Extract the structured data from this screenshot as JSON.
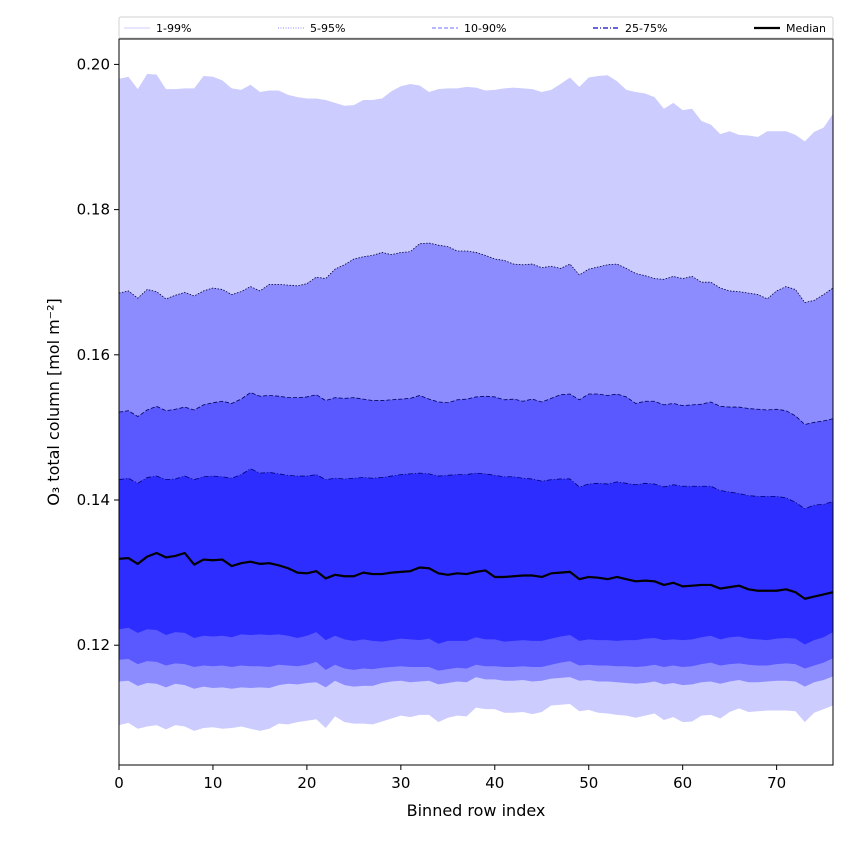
{
  "chart_data": {
    "type": "area",
    "xlabel": "Binned row index",
    "ylabel": "O₃ total column [mol m⁻²]",
    "xlim": [
      0,
      76
    ],
    "ylim": [
      0.1035,
      0.2035
    ],
    "xticks": [
      0,
      10,
      20,
      30,
      40,
      50,
      60,
      70
    ],
    "yticks": [
      0.12,
      0.14,
      0.16,
      0.18,
      0.2
    ],
    "x": [
      0,
      1,
      2,
      3,
      4,
      5,
      6,
      7,
      8,
      9,
      10,
      11,
      12,
      13,
      14,
      15,
      16,
      17,
      18,
      19,
      20,
      21,
      22,
      23,
      24,
      25,
      26,
      27,
      28,
      29,
      30,
      31,
      32,
      33,
      34,
      35,
      36,
      37,
      38,
      39,
      40,
      41,
      42,
      43,
      44,
      45,
      46,
      47,
      48,
      49,
      50,
      51,
      52,
      53,
      54,
      55,
      56,
      57,
      58,
      59,
      60,
      61,
      62,
      63,
      64,
      65,
      66,
      67,
      68,
      69,
      70,
      71,
      72,
      73,
      74,
      75,
      76
    ],
    "grid": false,
    "legend_position": "top",
    "legend": [
      {
        "label": "1-99%",
        "color": "#ccccff",
        "style": "solid-thin"
      },
      {
        "label": "5-95%",
        "color": "#8c8cff",
        "style": "dotted"
      },
      {
        "label": "10-90%",
        "color": "#8c8cff",
        "style": "dashed"
      },
      {
        "label": "25-75%",
        "color": "#3333cc",
        "style": "dashdot"
      },
      {
        "label": "Median",
        "color": "#000000",
        "style": "solid"
      }
    ],
    "bands": [
      {
        "name": "1-99%",
        "color": "#ccccff",
        "upper": [
          0.198,
          0.1983,
          0.1966,
          0.1987,
          0.1986,
          0.1966,
          0.1966,
          0.1967,
          0.1967,
          0.1984,
          0.1983,
          0.1978,
          0.1967,
          0.1965,
          0.1972,
          0.1962,
          0.1964,
          0.1964,
          0.1958,
          0.1955,
          0.1953,
          0.1953,
          0.1951,
          0.1947,
          0.1943,
          0.1944,
          0.1951,
          0.1951,
          0.1953,
          0.1963,
          0.197,
          0.1973,
          0.1971,
          0.1962,
          0.1966,
          0.1967,
          0.1967,
          0.1969,
          0.1968,
          0.1964,
          0.1965,
          0.1967,
          0.1968,
          0.1967,
          0.1966,
          0.1962,
          0.1965,
          0.1973,
          0.1982,
          0.1969,
          0.1982,
          0.1984,
          0.1985,
          0.1977,
          0.1965,
          0.1962,
          0.196,
          0.1955,
          0.1939,
          0.1947,
          0.1937,
          0.1939,
          0.1922,
          0.1917,
          0.1904,
          0.1908,
          0.1903,
          0.1902,
          0.19,
          0.1908,
          0.1908,
          0.1908,
          0.1903,
          0.1894,
          0.1907,
          0.1913,
          0.1932
        ],
        "lower": [
          0.109,
          0.1093,
          0.1085,
          0.1088,
          0.109,
          0.1084,
          0.109,
          0.1088,
          0.1082,
          0.1086,
          0.1087,
          0.1085,
          0.1086,
          0.1088,
          0.1085,
          0.1082,
          0.1085,
          0.1092,
          0.1091,
          0.1094,
          0.1096,
          0.1098,
          0.1086,
          0.1102,
          0.1094,
          0.1092,
          0.1092,
          0.1091,
          0.1095,
          0.1099,
          0.1103,
          0.1101,
          0.1104,
          0.1104,
          0.1094,
          0.11,
          0.1103,
          0.1102,
          0.1114,
          0.1112,
          0.1112,
          0.1107,
          0.1107,
          0.1108,
          0.1105,
          0.1108,
          0.1117,
          0.1118,
          0.1119,
          0.1109,
          0.1111,
          0.1107,
          0.1106,
          0.1104,
          0.1103,
          0.11,
          0.1103,
          0.1106,
          0.1097,
          0.1101,
          0.1094,
          0.1095,
          0.1103,
          0.1104,
          0.1099,
          0.1108,
          0.1113,
          0.1108,
          0.1109,
          0.111,
          0.111,
          0.111,
          0.1109,
          0.1094,
          0.1107,
          0.1112,
          0.1117
        ]
      },
      {
        "name": "5-95%",
        "color": "#8c8cff",
        "upper": [
          0.1685,
          0.1688,
          0.1678,
          0.169,
          0.1687,
          0.1677,
          0.1682,
          0.1686,
          0.1681,
          0.1688,
          0.1692,
          0.169,
          0.1683,
          0.1687,
          0.1694,
          0.1688,
          0.1697,
          0.1697,
          0.1696,
          0.1695,
          0.1698,
          0.1707,
          0.1705,
          0.1718,
          0.1724,
          0.1732,
          0.1735,
          0.1737,
          0.1741,
          0.1738,
          0.1741,
          0.1742,
          0.1753,
          0.1754,
          0.1751,
          0.1749,
          0.1743,
          0.1743,
          0.1741,
          0.1737,
          0.1732,
          0.173,
          0.1725,
          0.1724,
          0.1725,
          0.172,
          0.1722,
          0.1719,
          0.1725,
          0.171,
          0.1718,
          0.1721,
          0.1724,
          0.1725,
          0.1719,
          0.1712,
          0.1709,
          0.1705,
          0.1704,
          0.1708,
          0.1705,
          0.1708,
          0.17,
          0.17,
          0.1692,
          0.1688,
          0.1687,
          0.1685,
          0.1683,
          0.1677,
          0.1688,
          0.1694,
          0.169,
          0.1672,
          0.1675,
          0.1683,
          0.1692
        ],
        "lower": [
          0.115,
          0.1151,
          0.1144,
          0.1148,
          0.1147,
          0.1142,
          0.1147,
          0.1145,
          0.114,
          0.1143,
          0.1141,
          0.1142,
          0.114,
          0.1142,
          0.1141,
          0.1142,
          0.1141,
          0.1145,
          0.1147,
          0.1146,
          0.1148,
          0.1149,
          0.1142,
          0.1151,
          0.1145,
          0.1143,
          0.1144,
          0.1144,
          0.1148,
          0.115,
          0.1151,
          0.1149,
          0.115,
          0.1151,
          0.1146,
          0.1148,
          0.115,
          0.1149,
          0.1156,
          0.1153,
          0.1153,
          0.1151,
          0.1151,
          0.1152,
          0.115,
          0.1151,
          0.1154,
          0.1155,
          0.1156,
          0.1151,
          0.1152,
          0.115,
          0.115,
          0.1149,
          0.1148,
          0.1147,
          0.1148,
          0.115,
          0.1146,
          0.1148,
          0.1145,
          0.1146,
          0.1149,
          0.115,
          0.1147,
          0.115,
          0.1152,
          0.1149,
          0.1149,
          0.115,
          0.1151,
          0.1151,
          0.115,
          0.1143,
          0.1149,
          0.1152,
          0.1157
        ]
      },
      {
        "name": "10-90%",
        "color": "#5959ff",
        "upper": [
          0.1521,
          0.1523,
          0.1515,
          0.1524,
          0.1529,
          0.1523,
          0.1525,
          0.1528,
          0.1524,
          0.1531,
          0.1534,
          0.1536,
          0.1533,
          0.1539,
          0.1548,
          0.1543,
          0.1544,
          0.1543,
          0.1541,
          0.1541,
          0.1542,
          0.1545,
          0.1537,
          0.1541,
          0.154,
          0.1541,
          0.1539,
          0.1537,
          0.1537,
          0.1538,
          0.1539,
          0.154,
          0.1544,
          0.1539,
          0.1535,
          0.1534,
          0.1538,
          0.1539,
          0.1542,
          0.1543,
          0.1542,
          0.1538,
          0.1539,
          0.1536,
          0.1539,
          0.1535,
          0.154,
          0.1545,
          0.1546,
          0.1538,
          0.1546,
          0.1546,
          0.1544,
          0.1546,
          0.1542,
          0.1533,
          0.1536,
          0.1536,
          0.1531,
          0.1533,
          0.153,
          0.1531,
          0.1532,
          0.1535,
          0.1529,
          0.1528,
          0.1528,
          0.1526,
          0.1525,
          0.1524,
          0.1525,
          0.1523,
          0.1516,
          0.1504,
          0.1507,
          0.1509,
          0.1512
        ],
        "lower": [
          0.118,
          0.1181,
          0.1174,
          0.1178,
          0.1177,
          0.1172,
          0.1175,
          0.1174,
          0.117,
          0.1172,
          0.1171,
          0.1172,
          0.117,
          0.1172,
          0.1171,
          0.1171,
          0.117,
          0.1173,
          0.1172,
          0.1171,
          0.1173,
          0.1177,
          0.1166,
          0.1173,
          0.1168,
          0.1166,
          0.1168,
          0.1167,
          0.1169,
          0.117,
          0.1171,
          0.117,
          0.117,
          0.117,
          0.1165,
          0.1167,
          0.1169,
          0.1168,
          0.1173,
          0.1171,
          0.1171,
          0.117,
          0.117,
          0.1171,
          0.117,
          0.117,
          0.1173,
          0.1176,
          0.1178,
          0.1172,
          0.1173,
          0.1172,
          0.1172,
          0.1171,
          0.1171,
          0.117,
          0.1171,
          0.1173,
          0.117,
          0.1172,
          0.117,
          0.1171,
          0.1174,
          0.1176,
          0.1172,
          0.1174,
          0.1175,
          0.1173,
          0.1172,
          0.1172,
          0.1174,
          0.1175,
          0.1174,
          0.1168,
          0.1172,
          0.1176,
          0.1182
        ]
      },
      {
        "name": "25-75%",
        "color": "#2d2dff",
        "upper": [
          0.1428,
          0.143,
          0.1423,
          0.1431,
          0.1433,
          0.1428,
          0.1429,
          0.1433,
          0.1428,
          0.1432,
          0.1433,
          0.1432,
          0.143,
          0.1435,
          0.1443,
          0.1437,
          0.1438,
          0.1436,
          0.1434,
          0.1433,
          0.1433,
          0.1435,
          0.1428,
          0.143,
          0.1429,
          0.143,
          0.1431,
          0.143,
          0.1431,
          0.1433,
          0.1435,
          0.1436,
          0.1437,
          0.1436,
          0.1433,
          0.1434,
          0.1435,
          0.1435,
          0.1437,
          0.1436,
          0.1434,
          0.1432,
          0.1432,
          0.143,
          0.1429,
          0.1426,
          0.1428,
          0.1429,
          0.1429,
          0.1418,
          0.1422,
          0.1423,
          0.1422,
          0.1425,
          0.1423,
          0.1421,
          0.1423,
          0.1422,
          0.1418,
          0.1421,
          0.1419,
          0.1419,
          0.1419,
          0.1419,
          0.1413,
          0.1411,
          0.1409,
          0.1406,
          0.1405,
          0.1405,
          0.1405,
          0.1403,
          0.1397,
          0.1388,
          0.1393,
          0.1394,
          0.1398
        ],
        "lower": [
          0.1222,
          0.1224,
          0.1217,
          0.1222,
          0.1221,
          0.1214,
          0.1218,
          0.1217,
          0.121,
          0.1213,
          0.1212,
          0.1213,
          0.1211,
          0.1215,
          0.1214,
          0.1215,
          0.1214,
          0.1215,
          0.1213,
          0.121,
          0.1213,
          0.1218,
          0.1207,
          0.1213,
          0.1208,
          0.1206,
          0.1208,
          0.1206,
          0.1205,
          0.1207,
          0.1209,
          0.1208,
          0.1207,
          0.1209,
          0.1202,
          0.1206,
          0.1206,
          0.1206,
          0.1211,
          0.1208,
          0.1208,
          0.1205,
          0.1206,
          0.1207,
          0.1206,
          0.1206,
          0.1209,
          0.1212,
          0.1214,
          0.1206,
          0.1208,
          0.1207,
          0.1207,
          0.1206,
          0.1207,
          0.1207,
          0.1209,
          0.121,
          0.1207,
          0.1208,
          0.1207,
          0.1208,
          0.1211,
          0.1213,
          0.1208,
          0.1211,
          0.1212,
          0.1209,
          0.1208,
          0.1207,
          0.1209,
          0.121,
          0.1209,
          0.1201,
          0.1207,
          0.1211,
          0.1218
        ]
      }
    ],
    "series": [
      {
        "name": "Median",
        "color": "#000000",
        "values": [
          0.1319,
          0.132,
          0.1312,
          0.1322,
          0.1327,
          0.1321,
          0.1323,
          0.1327,
          0.1311,
          0.1318,
          0.1317,
          0.1318,
          0.1309,
          0.1313,
          0.1315,
          0.1312,
          0.1313,
          0.131,
          0.1306,
          0.13,
          0.1299,
          0.1302,
          0.1292,
          0.1297,
          0.1295,
          0.1295,
          0.13,
          0.1298,
          0.1298,
          0.13,
          0.1301,
          0.1302,
          0.1307,
          0.1306,
          0.1299,
          0.1297,
          0.1299,
          0.1298,
          0.1301,
          0.1303,
          0.1294,
          0.1294,
          0.1295,
          0.1296,
          0.1296,
          0.1294,
          0.1299,
          0.13,
          0.1301,
          0.1291,
          0.1294,
          0.1293,
          0.1291,
          0.1294,
          0.1291,
          0.1288,
          0.1289,
          0.1288,
          0.1283,
          0.1286,
          0.1281,
          0.1282,
          0.1283,
          0.1283,
          0.1278,
          0.128,
          0.1282,
          0.1277,
          0.1275,
          0.1275,
          0.1275,
          0.1277,
          0.1273,
          0.1264,
          0.1267,
          0.127,
          0.1273
        ]
      }
    ]
  }
}
